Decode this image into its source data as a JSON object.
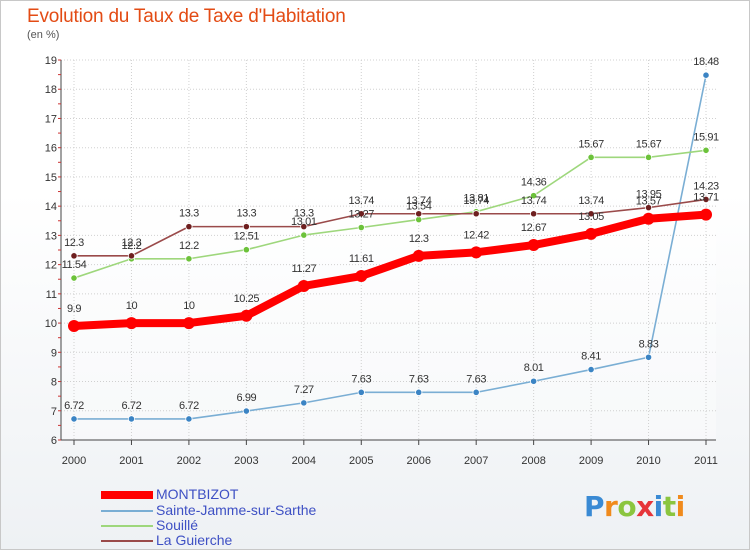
{
  "title": "Evolution du Taux de Taxe d'Habitation",
  "subtitle": "(en %)",
  "logo_text": "Proxiti",
  "colors": {
    "title": "#e34b14",
    "axis": "#444444",
    "grid": "#d0d0d0",
    "legend_text": "#3e50c4"
  },
  "chart_data": {
    "type": "line",
    "x": [
      2000,
      2001,
      2002,
      2003,
      2004,
      2005,
      2006,
      2007,
      2008,
      2009,
      2010,
      2011
    ],
    "ylim": [
      6,
      19
    ],
    "yticks": [
      6,
      7,
      8,
      9,
      10,
      11,
      12,
      13,
      14,
      15,
      16,
      17,
      18,
      19
    ],
    "grid": true,
    "legend_position": "bottom-left",
    "series": [
      {
        "name": "MONTBIZOT",
        "color": "#ff0000",
        "marker": "#ff0000",
        "values": [
          9.9,
          10,
          10,
          10.25,
          11.27,
          11.61,
          12.3,
          12.42,
          12.67,
          13.05,
          13.57,
          13.71
        ],
        "labels": [
          "9.9",
          "10",
          "10",
          "10.25",
          "11.27",
          "11.61",
          "12.3",
          "12.42",
          "12.67",
          "13.05",
          "13.57",
          "13.71"
        ]
      },
      {
        "name": "Sainte-Jamme-sur-Sarthe",
        "color": "#7aaed4",
        "marker": "#3b84c4",
        "values": [
          6.72,
          6.72,
          6.72,
          6.99,
          7.27,
          7.63,
          7.63,
          7.63,
          8.01,
          8.41,
          8.83,
          18.48
        ],
        "labels": [
          "6.72",
          "6.72",
          "6.72",
          "6.99",
          "7.27",
          "7.63",
          "7.63",
          "7.63",
          "8.01",
          "8.41",
          "8.83",
          "18.48"
        ]
      },
      {
        "name": "Souillé",
        "color": "#9ed77c",
        "marker": "#6cc23a",
        "values": [
          11.54,
          12.2,
          12.2,
          12.51,
          13.01,
          13.27,
          13.54,
          13.81,
          14.36,
          15.67,
          15.67,
          15.91
        ],
        "labels": [
          "11.54",
          "12.2",
          "12.2",
          "12.51",
          "13.01",
          "13.27",
          "13.54",
          "13.81",
          "14.36",
          "15.67",
          "15.67",
          "15.91"
        ]
      },
      {
        "name": "La Guierche",
        "color": "#9a4a4a",
        "marker": "#6e1f1f",
        "values": [
          12.3,
          12.3,
          13.3,
          13.3,
          13.3,
          13.74,
          13.74,
          13.74,
          13.74,
          13.74,
          13.95,
          14.23
        ],
        "labels": [
          "12.3",
          "12.3",
          "13.3",
          "13.3",
          "13.3",
          "13.74",
          "13.74",
          "13.74",
          "13.74",
          "13.74",
          "13.95",
          "14.23"
        ]
      }
    ]
  }
}
